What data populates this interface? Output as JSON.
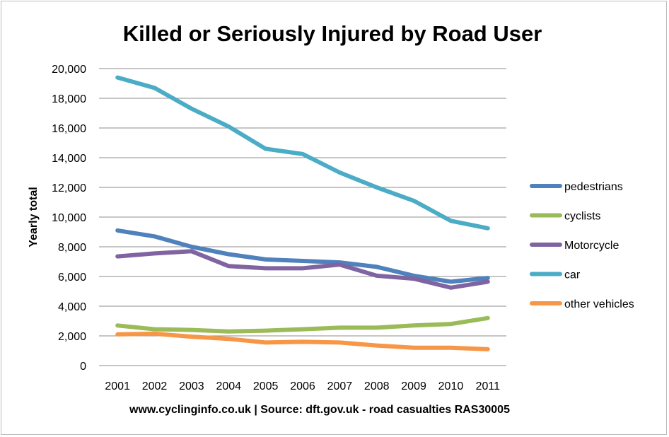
{
  "chart_data": {
    "type": "line",
    "title": "Killed or Seriously Injured by Road User",
    "ylabel": "Yearly total",
    "xlabel": "",
    "source": "www.cyclinginfo.co.uk | Source: dft.gov.uk - road casualties RAS30005",
    "categories": [
      "2001",
      "2002",
      "2003",
      "2004",
      "2005",
      "2006",
      "2007",
      "2008",
      "2009",
      "2010",
      "2011"
    ],
    "ylim": [
      0,
      20000
    ],
    "yticks": [
      0,
      2000,
      4000,
      6000,
      8000,
      10000,
      12000,
      14000,
      16000,
      18000,
      20000
    ],
    "ytick_labels": [
      "0",
      "2,000",
      "4,000",
      "6,000",
      "8,000",
      "10,000",
      "12,000",
      "14,000",
      "16,000",
      "18,000",
      "20,000"
    ],
    "grid": true,
    "legend_position": "right",
    "series": [
      {
        "name": "pedestrians",
        "color": "#4f81bd",
        "values": [
          9100,
          8700,
          8000,
          7500,
          7150,
          7050,
          6950,
          6650,
          6050,
          5650,
          5900
        ]
      },
      {
        "name": "cyclists",
        "color": "#9bbb59",
        "values": [
          2700,
          2450,
          2400,
          2300,
          2350,
          2450,
          2550,
          2550,
          2700,
          2800,
          3200
        ]
      },
      {
        "name": "Motorcycle",
        "color": "#8064a2",
        "values": [
          7350,
          7550,
          7700,
          6700,
          6550,
          6550,
          6800,
          6050,
          5850,
          5250,
          5650
        ]
      },
      {
        "name": "car",
        "color": "#4bacc6",
        "values": [
          19400,
          18700,
          17300,
          16100,
          14600,
          14250,
          13000,
          12000,
          11100,
          9750,
          9250
        ]
      },
      {
        "name": "other vehicles",
        "color": "#f79646",
        "values": [
          2100,
          2150,
          1950,
          1800,
          1550,
          1600,
          1550,
          1350,
          1200,
          1200,
          1100
        ]
      }
    ]
  }
}
